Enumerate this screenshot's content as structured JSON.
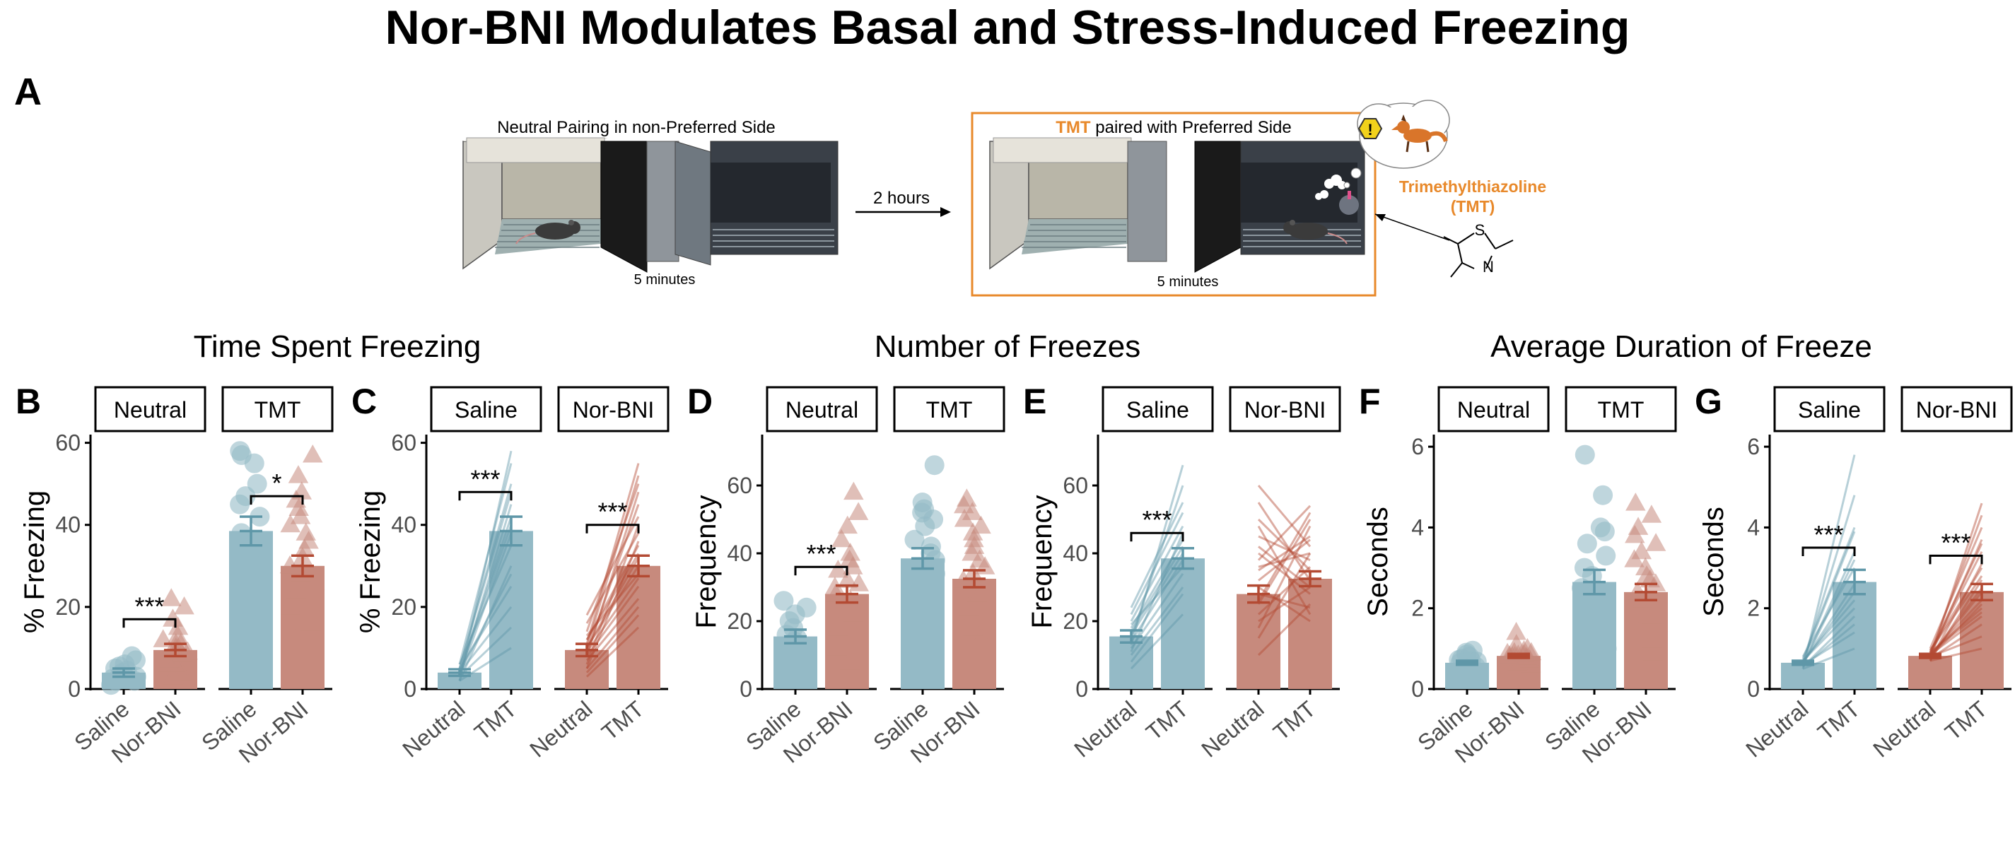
{
  "title": "Nor-BNI Modulates Basal and Stress-Induced Freezing",
  "colors": {
    "saline": "#5F97A8",
    "norbni": "#B34A33",
    "saline_fill": "#94BAC6",
    "norbni_fill": "#C78A7D",
    "tmt_orange": "#E8892B"
  },
  "schematic": {
    "panel_letter": "A",
    "left_caption": "Neutral Pairing in non-Preferred Side",
    "left_time": "5 minutes",
    "arrow_label": "2 hours",
    "right_caption_highlight": "TMT",
    "right_caption_rest": " paired with Preferred Side",
    "right_time": "5 minutes",
    "chemical_name": "Trimethylthiazoline",
    "chemical_abbrev": "(TMT)",
    "atom_s": "S",
    "atom_n": "N",
    "warning_icon": "!",
    "icons": [
      "rat-icon",
      "fox-icon",
      "warning-icon",
      "odor-puff-icon"
    ]
  },
  "section_titles": [
    "Time Spent Freezing",
    "Number of Freezes",
    "Average Duration of Freeze"
  ],
  "chart_data": [
    {
      "panel": "B",
      "type": "bar",
      "ylabel": "% Freezing",
      "ylim": [
        0,
        62
      ],
      "yticks": [
        0,
        20,
        40,
        60
      ],
      "facets": [
        {
          "label": "Neutral",
          "categories": [
            "Saline",
            "Nor-BNI"
          ],
          "means": [
            4,
            9.5
          ],
          "sem": [
            1,
            1.5
          ],
          "points": [
            [
              1,
              2,
              2.5,
              3,
              3.5,
              4,
              4.5,
              5,
              5.5,
              6,
              7,
              8,
              2,
              3
            ],
            [
              2,
              4,
              5,
              6,
              7,
              8,
              8.5,
              9,
              10,
              11,
              12,
              13,
              15,
              17,
              20,
              22,
              3,
              6,
              9,
              11
            ]
          ]
        },
        {
          "label": "TMT",
          "categories": [
            "Saline",
            "Nor-BNI"
          ],
          "means": [
            38.5,
            30
          ],
          "sem": [
            3.5,
            2.5
          ],
          "points": [
            [
              8,
              10,
              15,
              20,
              25,
              30,
              35,
              38,
              42,
              45,
              47,
              50,
              55,
              57,
              58
            ],
            [
              12,
              16,
              18,
              20,
              22,
              24,
              26,
              28,
              30,
              32,
              34,
              36,
              38,
              40,
              42,
              44,
              46,
              48,
              52,
              57
            ]
          ]
        }
      ],
      "sig": [
        {
          "facet": 0,
          "label": "***",
          "y": 17
        },
        {
          "facet": 1,
          "label": "*",
          "y": 47
        }
      ],
      "connected": false
    },
    {
      "panel": "C",
      "type": "bar",
      "ylabel": "% Freezing",
      "ylim": [
        0,
        62
      ],
      "yticks": [
        0,
        20,
        40,
        60
      ],
      "facets": [
        {
          "label": "Saline",
          "categories": [
            "Neutral",
            "TMT"
          ],
          "means": [
            4,
            38.5
          ],
          "sem": [
            0.8,
            3.5
          ],
          "pairs": [
            [
              2,
              10
            ],
            [
              3,
              15
            ],
            [
              4,
              20
            ],
            [
              5,
              25
            ],
            [
              2,
              30
            ],
            [
              6,
              35
            ],
            [
              4,
              40
            ],
            [
              3,
              45
            ],
            [
              5,
              50
            ],
            [
              6,
              55
            ],
            [
              2,
              58
            ],
            [
              4,
              42
            ],
            [
              3,
              38
            ],
            [
              5,
              48
            ],
            [
              4,
              28
            ]
          ]
        },
        {
          "label": "Nor-BNI",
          "categories": [
            "Neutral",
            "TMT"
          ],
          "means": [
            9.5,
            30
          ],
          "sem": [
            1.5,
            2.5
          ],
          "pairs": [
            [
              3,
              15
            ],
            [
              5,
              20
            ],
            [
              8,
              25
            ],
            [
              10,
              30
            ],
            [
              12,
              35
            ],
            [
              6,
              40
            ],
            [
              9,
              45
            ],
            [
              14,
              50
            ],
            [
              11,
              55
            ],
            [
              7,
              22
            ],
            [
              13,
              28
            ],
            [
              10,
              32
            ],
            [
              4,
              18
            ],
            [
              16,
              38
            ],
            [
              18,
              42
            ],
            [
              9,
              27
            ],
            [
              12,
              33
            ],
            [
              8,
              48
            ],
            [
              10,
              52
            ],
            [
              5,
              36
            ]
          ]
        }
      ],
      "sig": [
        {
          "facet": 0,
          "label": "***",
          "y": 48
        },
        {
          "facet": 1,
          "label": "***",
          "y": 40
        }
      ],
      "connected": true
    },
    {
      "panel": "D",
      "type": "bar",
      "ylabel": "Frequency",
      "ylim": [
        0,
        75
      ],
      "yticks": [
        0,
        20,
        40,
        60
      ],
      "facets": [
        {
          "label": "Neutral",
          "categories": [
            "Saline",
            "Nor-BNI"
          ],
          "means": [
            15.5,
            28
          ],
          "sem": [
            2,
            2.5
          ],
          "points": [
            [
              4,
              6,
              8,
              10,
              12,
              14,
              15,
              16,
              18,
              20,
              22,
              24,
              26,
              12,
              9
            ],
            [
              8,
              12,
              15,
              18,
              20,
              22,
              25,
              28,
              30,
              32,
              35,
              38,
              40,
              44,
              48,
              52,
              58,
              26,
              31,
              36
            ]
          ]
        },
        {
          "label": "TMT",
          "categories": [
            "Saline",
            "Nor-BNI"
          ],
          "means": [
            38.5,
            32.5
          ],
          "sem": [
            3,
            2.5
          ],
          "points": [
            [
              18,
              22,
              26,
              30,
              34,
              38,
              40,
              42,
              44,
              48,
              50,
              52,
              53,
              55,
              66
            ],
            [
              15,
              18,
              20,
              24,
              26,
              28,
              30,
              32,
              34,
              36,
              38,
              40,
              42,
              44,
              46,
              48,
              50,
              52,
              54,
              56
            ]
          ]
        }
      ],
      "sig": [
        {
          "facet": 0,
          "label": "***",
          "y": 36
        }
      ],
      "connected": false
    },
    {
      "panel": "E",
      "type": "bar",
      "ylabel": "Frequency",
      "ylim": [
        0,
        75
      ],
      "yticks": [
        0,
        20,
        40,
        60
      ],
      "facets": [
        {
          "label": "Saline",
          "categories": [
            "Neutral",
            "TMT"
          ],
          "means": [
            15.5,
            38.5
          ],
          "sem": [
            1.8,
            3
          ],
          "pairs": [
            [
              6,
              22
            ],
            [
              8,
              28
            ],
            [
              10,
              30
            ],
            [
              12,
              34
            ],
            [
              14,
              38
            ],
            [
              16,
              40
            ],
            [
              18,
              44
            ],
            [
              20,
              48
            ],
            [
              22,
              52
            ],
            [
              24,
              55
            ],
            [
              15,
              60
            ],
            [
              13,
              66
            ],
            [
              17,
              42
            ],
            [
              19,
              36
            ],
            [
              11,
              46
            ]
          ]
        },
        {
          "label": "Nor-BNI",
          "categories": [
            "Neutral",
            "TMT"
          ],
          "means": [
            28,
            32.5
          ],
          "sem": [
            2.5,
            2.2
          ],
          "pairs": [
            [
              10,
              25
            ],
            [
              15,
              40
            ],
            [
              20,
              30
            ],
            [
              25,
              50
            ],
            [
              30,
              20
            ],
            [
              35,
              45
            ],
            [
              40,
              28
            ],
            [
              45,
              38
            ],
            [
              50,
              35
            ],
            [
              55,
              32
            ],
            [
              60,
              42
            ],
            [
              18,
              48
            ],
            [
              28,
              24
            ],
            [
              38,
              54
            ],
            [
              22,
              36
            ],
            [
              32,
              44
            ],
            [
              42,
              30
            ],
            [
              48,
              22
            ],
            [
              26,
              52
            ],
            [
              36,
              40
            ]
          ]
        }
      ],
      "sig": [
        {
          "facet": 0,
          "label": "***",
          "y": 46
        }
      ],
      "connected": true
    },
    {
      "panel": "F",
      "type": "bar",
      "ylabel": "Seconds",
      "ylim": [
        0,
        6.3
      ],
      "yticks": [
        0,
        2,
        4,
        6
      ],
      "facets": [
        {
          "label": "Neutral",
          "categories": [
            "Saline",
            "Nor-BNI"
          ],
          "means": [
            0.65,
            0.82
          ],
          "sem": [
            0.05,
            0.05
          ],
          "points": [
            [
              0.4,
              0.5,
              0.55,
              0.6,
              0.62,
              0.65,
              0.7,
              0.72,
              0.75,
              0.8,
              0.85,
              0.9,
              0.95,
              0.5,
              0.68
            ],
            [
              0.6,
              0.65,
              0.7,
              0.72,
              0.75,
              0.78,
              0.8,
              0.82,
              0.85,
              0.88,
              0.9,
              0.95,
              1.0,
              1.1,
              1.4,
              0.7,
              0.8,
              0.9,
              0.76,
              0.84
            ]
          ]
        },
        {
          "label": "TMT",
          "categories": [
            "Saline",
            "Nor-BNI"
          ],
          "means": [
            2.65,
            2.4
          ],
          "sem": [
            0.3,
            0.2
          ],
          "points": [
            [
              0.6,
              1,
              1.3,
              1.6,
              1.9,
              2.2,
              2.5,
              2.8,
              3.0,
              3.3,
              3.6,
              3.9,
              4.0,
              4.8,
              5.8
            ],
            [
              0.9,
              1.2,
              1.4,
              1.6,
              1.8,
              2.0,
              2.2,
              2.4,
              2.6,
              2.8,
              3.0,
              3.2,
              3.4,
              3.6,
              3.8,
              4.0,
              4.3,
              4.6,
              2.1,
              2.7
            ]
          ]
        }
      ],
      "sig": [],
      "connected": false
    },
    {
      "panel": "G",
      "type": "bar",
      "ylabel": "Seconds",
      "ylim": [
        0,
        6.3
      ],
      "yticks": [
        0,
        2,
        4,
        6
      ],
      "facets": [
        {
          "label": "Saline",
          "categories": [
            "Neutral",
            "TMT"
          ],
          "means": [
            0.65,
            2.65
          ],
          "sem": [
            0.05,
            0.3
          ],
          "pairs": [
            [
              0.5,
              1.0
            ],
            [
              0.6,
              1.4
            ],
            [
              0.55,
              1.8
            ],
            [
              0.7,
              2.2
            ],
            [
              0.65,
              2.6
            ],
            [
              0.8,
              3.0
            ],
            [
              0.6,
              3.4
            ],
            [
              0.7,
              3.9
            ],
            [
              0.75,
              4.0
            ],
            [
              0.6,
              4.8
            ],
            [
              0.5,
              5.8
            ],
            [
              0.7,
              2.0
            ],
            [
              0.65,
              2.4
            ],
            [
              0.55,
              1.6
            ],
            [
              0.6,
              3.2
            ]
          ]
        },
        {
          "label": "Nor-BNI",
          "categories": [
            "Neutral",
            "TMT"
          ],
          "means": [
            0.82,
            2.4
          ],
          "sem": [
            0.05,
            0.2
          ],
          "pairs": [
            [
              0.7,
              1.0
            ],
            [
              0.8,
              1.3
            ],
            [
              0.75,
              1.6
            ],
            [
              0.9,
              1.9
            ],
            [
              0.85,
              2.2
            ],
            [
              0.8,
              2.5
            ],
            [
              0.95,
              2.8
            ],
            [
              0.7,
              3.1
            ],
            [
              0.9,
              3.4
            ],
            [
              0.8,
              3.7
            ],
            [
              1.0,
              4.0
            ],
            [
              0.85,
              4.3
            ],
            [
              0.75,
              4.6
            ],
            [
              0.9,
              2.0
            ],
            [
              0.8,
              2.4
            ],
            [
              0.7,
              2.7
            ],
            [
              0.85,
              1.8
            ],
            [
              0.95,
              3.0
            ],
            [
              0.8,
              2.1
            ],
            [
              0.9,
              3.6
            ]
          ]
        }
      ],
      "sig": [
        {
          "facet": 0,
          "label": "***",
          "y": 3.5
        },
        {
          "facet": 1,
          "label": "***",
          "y": 3.3
        }
      ],
      "connected": true
    }
  ]
}
